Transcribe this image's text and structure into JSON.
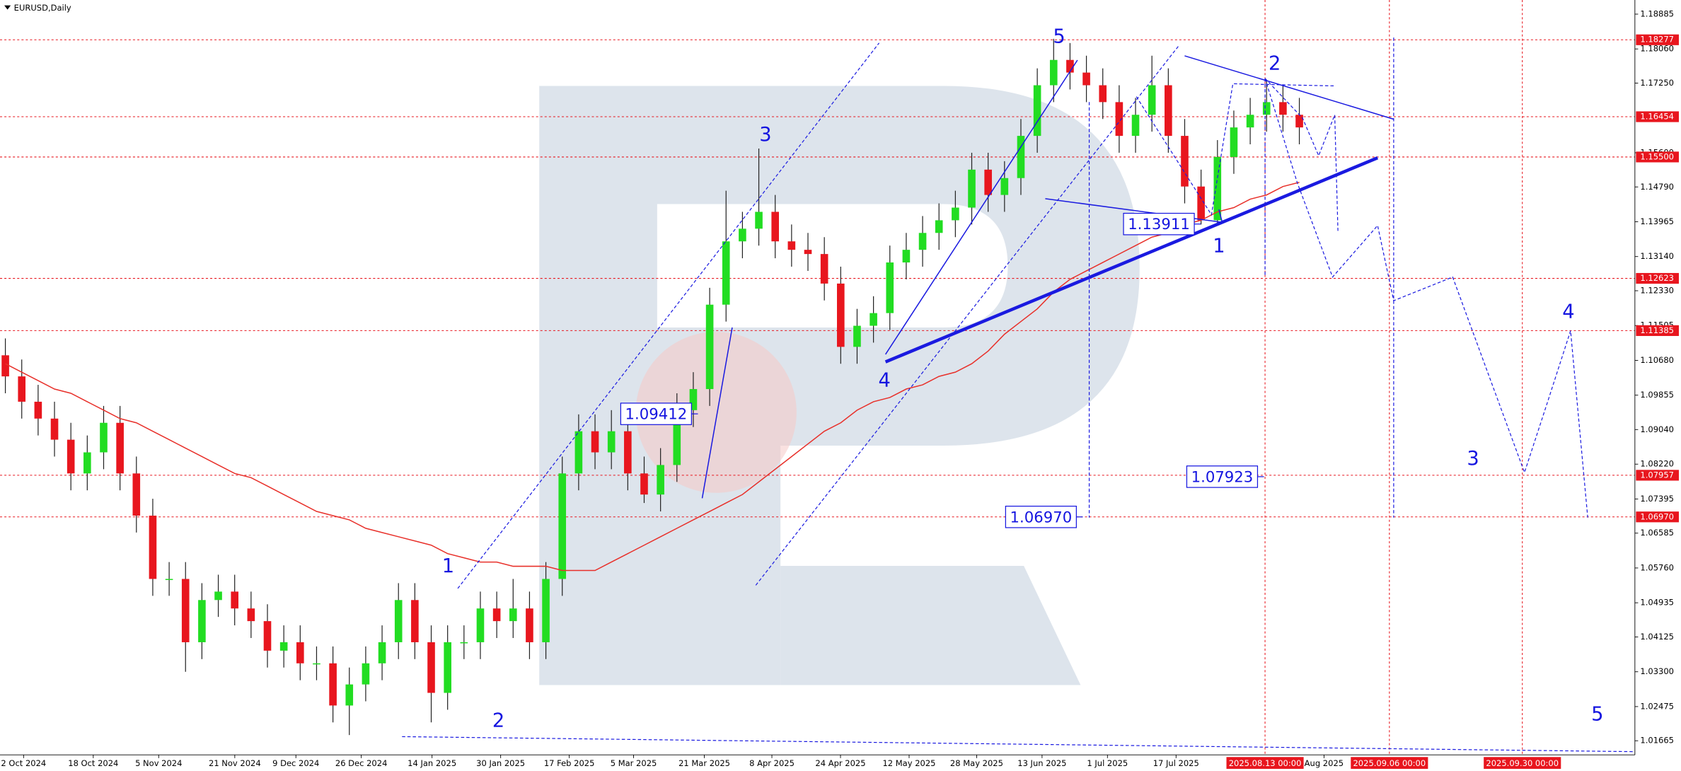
{
  "chart_data": {
    "type": "candlestick",
    "title": "EURUSD,Daily",
    "bull_color": "#22dd22",
    "bear_color": "#e8161e",
    "open": [
      1.108,
      1.103,
      1.097,
      1.093,
      1.088,
      1.08,
      1.085,
      1.092,
      1.08,
      1.07,
      1.055,
      1.055,
      1.04,
      1.05,
      1.052,
      1.048,
      1.045,
      1.038,
      1.04,
      1.035,
      1.035,
      1.025,
      1.03,
      1.035,
      1.04,
      1.05,
      1.04,
      1.028,
      1.04,
      1.04,
      1.048,
      1.045,
      1.048,
      1.04,
      1.055,
      1.08,
      1.09,
      1.085,
      1.09,
      1.08,
      1.075,
      1.082,
      1.095,
      1.1,
      1.12,
      1.135,
      1.138,
      1.142,
      1.135,
      1.133,
      1.132,
      1.125,
      1.11,
      1.115,
      1.118,
      1.13,
      1.133,
      1.137,
      1.14,
      1.143,
      1.152,
      1.146,
      1.15,
      1.16,
      1.172,
      1.178,
      1.175,
      1.172,
      1.168,
      1.16,
      1.165,
      1.172,
      1.16,
      1.148,
      1.14,
      1.155,
      1.162,
      1.165,
      1.168,
      1.165
    ],
    "high": [
      1.112,
      1.107,
      1.101,
      1.097,
      1.092,
      1.089,
      1.096,
      1.096,
      1.084,
      1.074,
      1.059,
      1.059,
      1.054,
      1.056,
      1.056,
      1.052,
      1.049,
      1.044,
      1.044,
      1.039,
      1.039,
      1.034,
      1.039,
      1.044,
      1.054,
      1.054,
      1.044,
      1.044,
      1.044,
      1.052,
      1.052,
      1.055,
      1.052,
      1.059,
      1.084,
      1.094,
      1.094,
      1.095,
      1.094,
      1.084,
      1.086,
      1.099,
      1.104,
      1.124,
      1.147,
      1.142,
      1.157,
      1.146,
      1.139,
      1.137,
      1.136,
      1.129,
      1.119,
      1.122,
      1.134,
      1.137,
      1.141,
      1.144,
      1.147,
      1.156,
      1.156,
      1.154,
      1.164,
      1.176,
      1.183,
      1.182,
      1.179,
      1.176,
      1.172,
      1.169,
      1.179,
      1.176,
      1.164,
      1.152,
      1.159,
      1.166,
      1.169,
      1.173,
      1.172,
      1.169
    ],
    "low": [
      1.099,
      1.093,
      1.089,
      1.084,
      1.076,
      1.076,
      1.081,
      1.076,
      1.066,
      1.051,
      1.051,
      1.033,
      1.036,
      1.046,
      1.044,
      1.041,
      1.034,
      1.034,
      1.031,
      1.031,
      1.021,
      1.018,
      1.026,
      1.031,
      1.036,
      1.036,
      1.021,
      1.024,
      1.036,
      1.036,
      1.041,
      1.041,
      1.036,
      1.036,
      1.051,
      1.076,
      1.081,
      1.081,
      1.076,
      1.073,
      1.071,
      1.078,
      1.091,
      1.096,
      1.116,
      1.131,
      1.134,
      1.131,
      1.129,
      1.128,
      1.121,
      1.106,
      1.106,
      1.111,
      1.114,
      1.126,
      1.129,
      1.133,
      1.136,
      1.139,
      1.142,
      1.142,
      1.146,
      1.156,
      1.168,
      1.171,
      1.168,
      1.164,
      1.156,
      1.156,
      1.161,
      1.156,
      1.144,
      1.139,
      1.139,
      1.151,
      1.158,
      1.161,
      1.161,
      1.158
    ],
    "close": [
      1.103,
      1.097,
      1.093,
      1.088,
      1.08,
      1.085,
      1.092,
      1.08,
      1.07,
      1.055,
      1.055,
      1.04,
      1.05,
      1.052,
      1.048,
      1.045,
      1.038,
      1.04,
      1.035,
      1.035,
      1.025,
      1.03,
      1.035,
      1.04,
      1.05,
      1.04,
      1.028,
      1.04,
      1.04,
      1.048,
      1.045,
      1.048,
      1.04,
      1.055,
      1.08,
      1.09,
      1.085,
      1.09,
      1.08,
      1.075,
      1.082,
      1.095,
      1.1,
      1.12,
      1.135,
      1.138,
      1.142,
      1.135,
      1.133,
      1.132,
      1.125,
      1.11,
      1.115,
      1.118,
      1.13,
      1.133,
      1.137,
      1.14,
      1.143,
      1.152,
      1.146,
      1.15,
      1.16,
      1.172,
      1.178,
      1.175,
      1.172,
      1.168,
      1.16,
      1.165,
      1.172,
      1.16,
      1.148,
      1.14,
      1.155,
      1.162,
      1.165,
      1.168,
      1.165,
      1.162
    ],
    "ma": {
      "color": "#e8302a",
      "values": [
        1.106,
        1.104,
        1.102,
        1.1,
        1.099,
        1.097,
        1.095,
        1.093,
        1.092,
        1.09,
        1.088,
        1.086,
        1.084,
        1.082,
        1.08,
        1.079,
        1.077,
        1.075,
        1.073,
        1.071,
        1.07,
        1.069,
        1.067,
        1.066,
        1.065,
        1.064,
        1.063,
        1.061,
        1.06,
        1.059,
        1.059,
        1.058,
        1.058,
        1.058,
        1.057,
        1.057,
        1.057,
        1.059,
        1.061,
        1.063,
        1.065,
        1.067,
        1.069,
        1.071,
        1.073,
        1.075,
        1.078,
        1.081,
        1.084,
        1.087,
        1.09,
        1.092,
        1.095,
        1.097,
        1.098,
        1.1,
        1.101,
        1.103,
        1.104,
        1.106,
        1.109,
        1.113,
        1.116,
        1.119,
        1.123,
        1.126,
        1.128,
        1.13,
        1.132,
        1.134,
        1.136,
        1.137,
        1.139,
        1.14,
        1.142,
        1.143,
        1.145,
        1.146,
        1.148,
        1.149
      ]
    },
    "ylim": [
      1.0133,
      1.1922
    ],
    "yticks": [
      1.18885,
      {
        "value": 1.1806,
        "label": "1.18060"
      },
      {
        "value": 1.1725,
        "label": "1.17250"
      },
      {
        "value": 1.156,
        "label": "1.15600"
      },
      {
        "value": 1.1479,
        "label": "1.14790"
      },
      1.13965,
      {
        "value": 1.1314,
        "label": "1.13140"
      },
      {
        "value": 1.1233,
        "label": "1.12330"
      },
      1.11505,
      {
        "value": 1.1068,
        "label": "1.10680"
      },
      1.09855,
      {
        "value": 1.0904,
        "label": "1.09040"
      },
      {
        "value": 1.0822,
        "label": "1.08220"
      },
      1.07395,
      1.06585,
      {
        "value": 1.0576,
        "label": "1.05760"
      },
      1.04935,
      1.04125,
      {
        "value": 1.033,
        "label": "1.03300"
      },
      1.02475,
      1.01665
    ],
    "levels": [
      1.18277,
      1.16454,
      {
        "value": 1.155,
        "label": "1.15500"
      },
      1.12623,
      1.11385,
      1.07957,
      {
        "value": 1.0697,
        "label": "1.06970"
      }
    ],
    "level_color": "#e8161e",
    "x_labels": [
      "2 Oct 2024",
      "18 Oct 2024",
      "5 Nov 2024",
      "21 Nov 2024",
      "9 Dec 2024",
      "26 Dec 2024",
      "14 Jan 2025",
      "30 Jan 2025",
      "17 Feb 2025",
      "5 Mar 2025",
      "21 Mar 2025",
      "8 Apr 2025",
      "24 Apr 2025",
      "12 May 2025",
      "28 May 2025",
      "13 Jun 2025",
      "1 Jul 2025",
      "17 Jul 2025",
      "Aug 2025"
    ],
    "date_markers": [
      "2025.08.13 00:00",
      "2025.09.06 00:00",
      "2025.09.30 00:00"
    ],
    "price_labels": [
      1.09412,
      1.13911,
      1.07923,
      {
        "value": 1.0697,
        "label": "1.06970"
      }
    ],
    "waves": [
      "1",
      "2",
      "3",
      "4",
      "5",
      "1",
      "2",
      "3",
      "4",
      "5"
    ]
  }
}
